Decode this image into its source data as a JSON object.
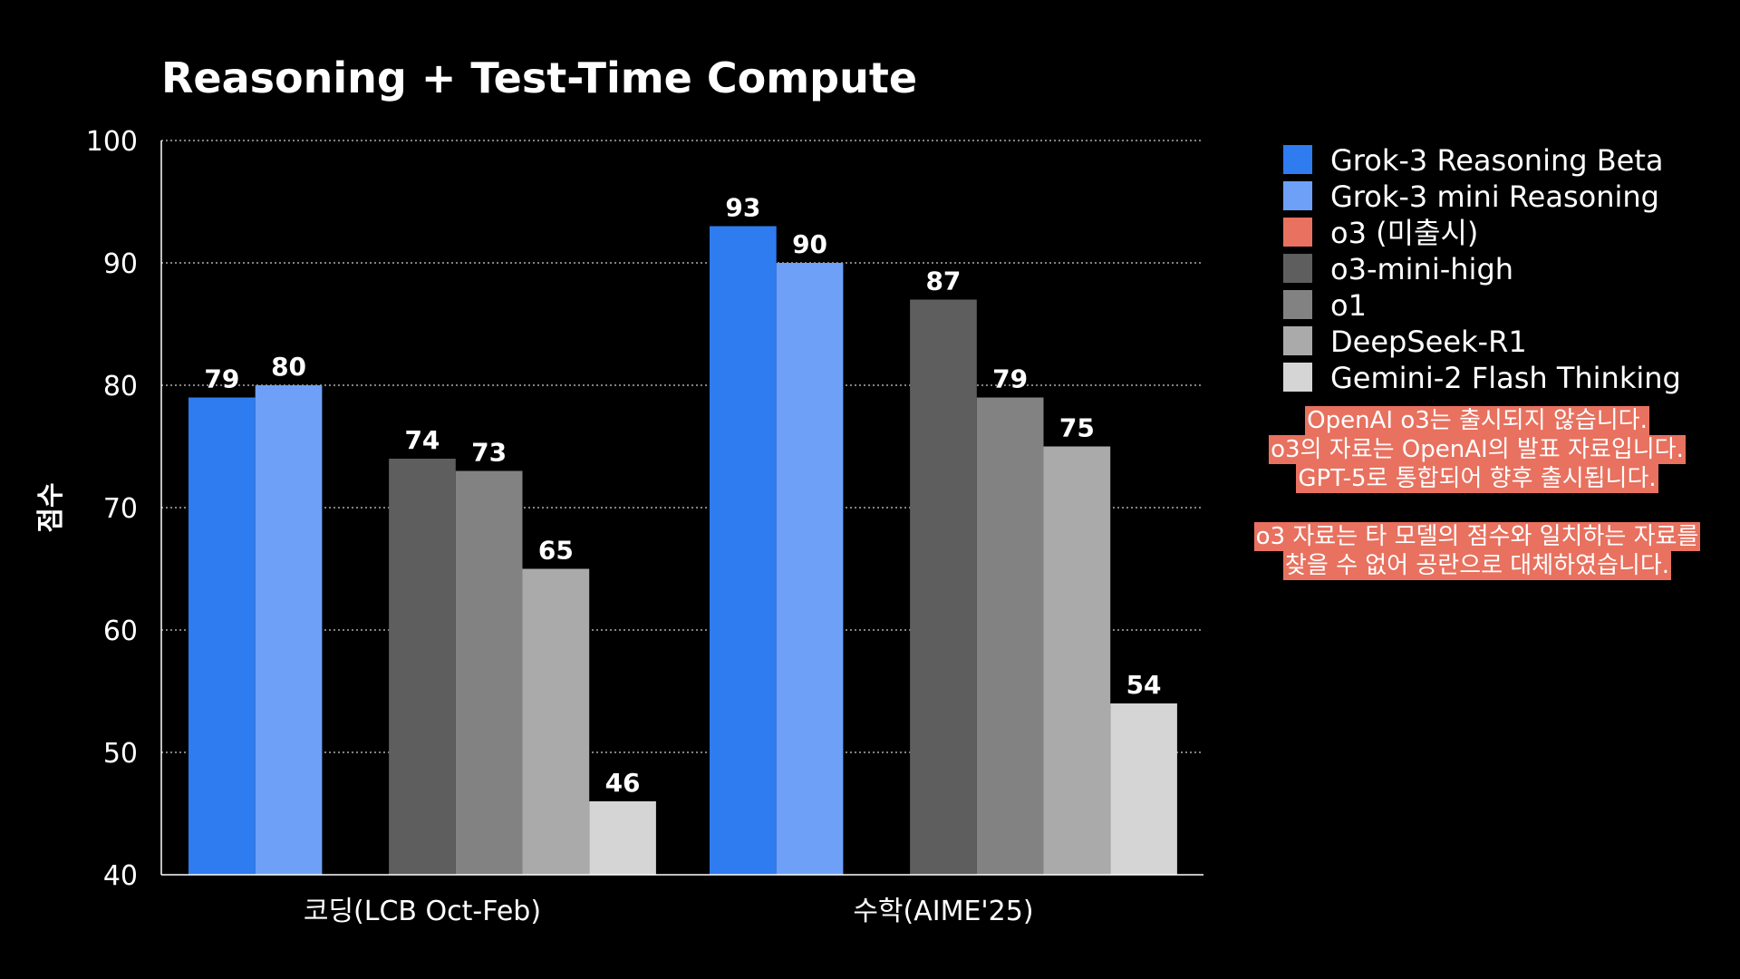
{
  "chart_data": {
    "type": "bar",
    "title": "Reasoning + Test-Time Compute",
    "xlabel": "",
    "ylabel": "점수",
    "ylim": [
      40,
      100
    ],
    "yticks": [
      40,
      50,
      60,
      70,
      80,
      90,
      100
    ],
    "grid": true,
    "legend_position": "right",
    "categories": [
      "코딩(LCB Oct-Feb)",
      "수학(AIME'25)"
    ],
    "series": [
      {
        "name": "Grok-3 Reasoning Beta",
        "color": "#2f7bf0",
        "values": [
          79,
          93
        ]
      },
      {
        "name": "Grok-3 mini Reasoning",
        "color": "#6fa0f7",
        "values": [
          80,
          90
        ]
      },
      {
        "name": "o3 (미출시)",
        "color": "#e8715f",
        "values": [
          null,
          null
        ]
      },
      {
        "name": "o3-mini-high",
        "color": "#5e5e5e",
        "values": [
          74,
          87
        ]
      },
      {
        "name": "o1",
        "color": "#828282",
        "values": [
          73,
          79
        ]
      },
      {
        "name": "DeepSeek-R1",
        "color": "#aaaaaa",
        "values": [
          65,
          75
        ]
      },
      {
        "name": "Gemini-2 Flash Thinking",
        "color": "#d5d5d5",
        "values": [
          46,
          54
        ]
      }
    ]
  },
  "note": {
    "paragraphs": [
      [
        "OpenAI o3는 출시되지 않습니다.",
        "o3의 자료는 OpenAI의 발표 자료입니다.",
        "GPT-5로 통합되어 향후 출시됩니다."
      ],
      [
        "o3 자료는 타 모델의 점수와 일치하는 자료를",
        "찾을 수 없어 공란으로 대체하였습니다."
      ]
    ]
  }
}
